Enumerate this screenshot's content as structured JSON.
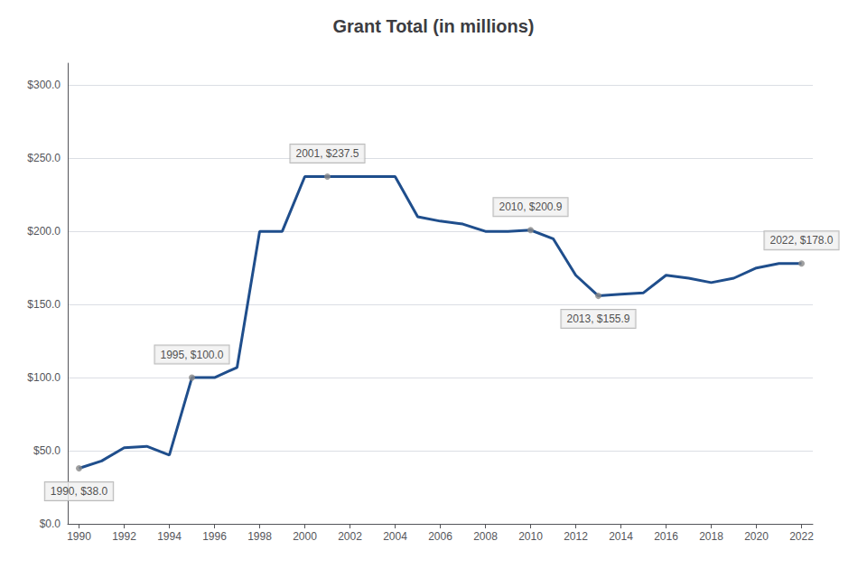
{
  "chart_data": {
    "type": "line",
    "title": "Grant Total (in millions)",
    "x": [
      1990,
      1991,
      1992,
      1993,
      1994,
      1995,
      1996,
      1997,
      1998,
      1999,
      2000,
      2001,
      2002,
      2003,
      2004,
      2005,
      2006,
      2007,
      2008,
      2009,
      2010,
      2011,
      2012,
      2013,
      2014,
      2015,
      2016,
      2017,
      2018,
      2019,
      2020,
      2021,
      2022
    ],
    "values": [
      38.0,
      43.0,
      52.0,
      53.0,
      47.0,
      100.0,
      100.0,
      107.0,
      200.0,
      200.0,
      237.5,
      237.5,
      237.5,
      237.5,
      237.5,
      210.0,
      207.0,
      205.0,
      200.0,
      200.0,
      200.9,
      195.0,
      170.0,
      155.9,
      157.0,
      158.0,
      170.0,
      168.0,
      165.0,
      168.0,
      175.0,
      178.0,
      178.0
    ],
    "color": "#1f4e8c",
    "xlim": [
      1989.5,
      2022.5
    ],
    "xticks": [
      1990,
      1992,
      1994,
      1996,
      1998,
      2000,
      2002,
      2004,
      2006,
      2008,
      2010,
      2012,
      2014,
      2016,
      2018,
      2020,
      2022
    ],
    "ylim": [
      0,
      315
    ],
    "yticks": [
      {
        "value": 0,
        "label": "$0.0"
      },
      {
        "value": 50,
        "label": "$50.0"
      },
      {
        "value": 100,
        "label": "$100.0"
      },
      {
        "value": 150,
        "label": "$150.0"
      },
      {
        "value": 200,
        "label": "$200.0"
      },
      {
        "value": 250,
        "label": "$250.0"
      },
      {
        "value": 300,
        "label": "$300.0"
      }
    ],
    "grid": true,
    "annotations": [
      {
        "x": 1990,
        "y": 38.0,
        "text": "1990, $38.0"
      },
      {
        "x": 1995,
        "y": 100.0,
        "text": "1995, $100.0"
      },
      {
        "x": 2001,
        "y": 237.5,
        "text": "2001, $237.5"
      },
      {
        "x": 2010,
        "y": 200.9,
        "text": "2010, $200.9"
      },
      {
        "x": 2013,
        "y": 155.9,
        "text": "2013, $155.9"
      },
      {
        "x": 2022,
        "y": 178.0,
        "text": "2022, $178.0"
      }
    ]
  }
}
